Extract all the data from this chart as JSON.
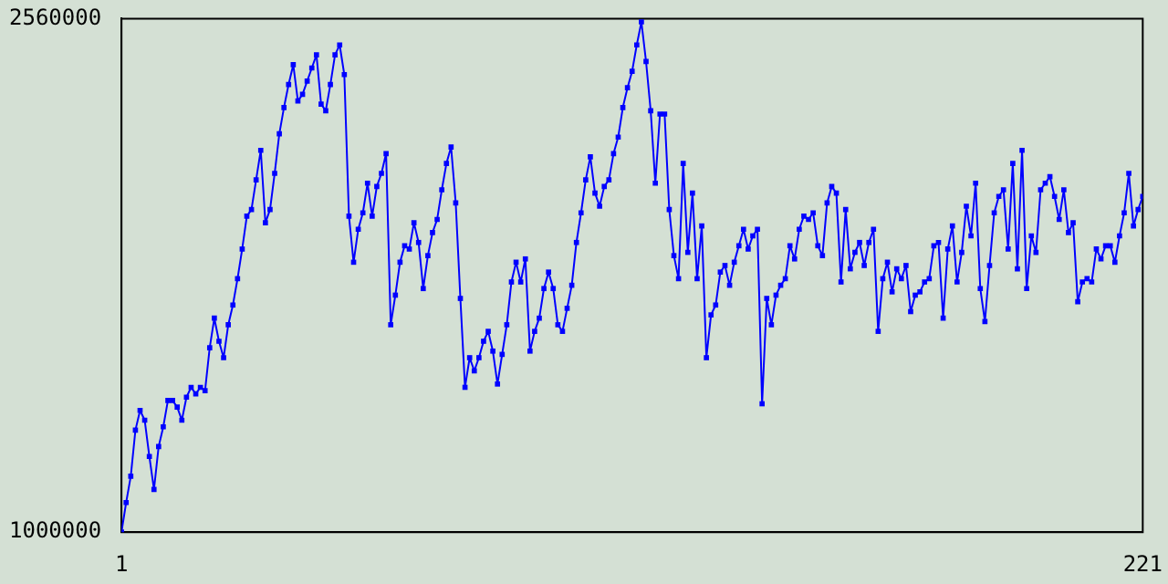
{
  "chart_data": {
    "type": "line",
    "xlim": [
      1,
      221
    ],
    "xticks": [
      1,
      221
    ],
    "ylim": [
      1000000,
      2560000
    ],
    "yticks": [
      1000000,
      2560000
    ],
    "grid": false,
    "legend": false,
    "marker": "square",
    "line_style": "solid",
    "series": [
      {
        "color": "#0000ff",
        "x": [
          1,
          2,
          3,
          4,
          5,
          6,
          7,
          8,
          9,
          10,
          11,
          12,
          13,
          14,
          15,
          16,
          17,
          18,
          19,
          20,
          21,
          22,
          23,
          24,
          25,
          26,
          27,
          28,
          29,
          30,
          31,
          32,
          33,
          34,
          35,
          36,
          37,
          38,
          39,
          40,
          41,
          42,
          43,
          44,
          45,
          46,
          47,
          48,
          49,
          50,
          51,
          52,
          53,
          54,
          55,
          56,
          57,
          58,
          59,
          60,
          61,
          62,
          63,
          64,
          65,
          66,
          67,
          68,
          69,
          70,
          71,
          72,
          73,
          74,
          75,
          76,
          77,
          78,
          79,
          80,
          81,
          82,
          83,
          84,
          85,
          86,
          87,
          88,
          89,
          90,
          91,
          92,
          93,
          94,
          95,
          96,
          97,
          98,
          99,
          100,
          101,
          102,
          103,
          104,
          105,
          106,
          107,
          108,
          109,
          110,
          111,
          112,
          113,
          114,
          115,
          116,
          117,
          118,
          119,
          120,
          121,
          122,
          123,
          124,
          125,
          126,
          127,
          128,
          129,
          130,
          131,
          132,
          133,
          134,
          135,
          136,
          137,
          138,
          139,
          140,
          141,
          142,
          143,
          144,
          145,
          146,
          147,
          148,
          149,
          150,
          151,
          152,
          153,
          154,
          155,
          156,
          157,
          158,
          159,
          160,
          161,
          162,
          163,
          164,
          165,
          166,
          167,
          168,
          169,
          170,
          171,
          172,
          173,
          174,
          175,
          176,
          177,
          178,
          179,
          180,
          181,
          182,
          183,
          184,
          185,
          186,
          187,
          188,
          189,
          190,
          191,
          192,
          193,
          194,
          195,
          196,
          197,
          198,
          199,
          200,
          201,
          202,
          203,
          204,
          205,
          206,
          207,
          208,
          209,
          210,
          211,
          212,
          213,
          214,
          215,
          216,
          217,
          218,
          219,
          220,
          221
        ],
        "values": [
          1000000,
          1090000,
          1170000,
          1310000,
          1370000,
          1340000,
          1230000,
          1130000,
          1260000,
          1320000,
          1400000,
          1400000,
          1380000,
          1340000,
          1410000,
          1440000,
          1420000,
          1440000,
          1430000,
          1560000,
          1650000,
          1580000,
          1530000,
          1630000,
          1690000,
          1770000,
          1860000,
          1960000,
          1980000,
          2070000,
          2160000,
          1940000,
          1980000,
          2090000,
          2210000,
          2290000,
          2360000,
          2420000,
          2310000,
          2330000,
          2370000,
          2410000,
          2450000,
          2300000,
          2280000,
          2360000,
          2450000,
          2480000,
          2390000,
          1960000,
          1820000,
          1920000,
          1970000,
          2060000,
          1960000,
          2050000,
          2090000,
          2150000,
          1630000,
          1720000,
          1820000,
          1870000,
          1860000,
          1940000,
          1880000,
          1740000,
          1840000,
          1910000,
          1950000,
          2040000,
          2120000,
          2170000,
          2000000,
          1710000,
          1440000,
          1530000,
          1490000,
          1530000,
          1580000,
          1610000,
          1550000,
          1450000,
          1540000,
          1630000,
          1760000,
          1820000,
          1760000,
          1830000,
          1550000,
          1610000,
          1650000,
          1740000,
          1790000,
          1740000,
          1630000,
          1610000,
          1680000,
          1750000,
          1880000,
          1970000,
          2070000,
          2140000,
          2030000,
          1990000,
          2050000,
          2070000,
          2150000,
          2200000,
          2290000,
          2350000,
          2400000,
          2480000,
          2550000,
          2430000,
          2280000,
          2060000,
          2270000,
          2270000,
          1980000,
          1840000,
          1770000,
          2120000,
          1850000,
          2030000,
          1770000,
          1930000,
          1530000,
          1660000,
          1690000,
          1790000,
          1810000,
          1750000,
          1820000,
          1870000,
          1920000,
          1860000,
          1900000,
          1920000,
          1390000,
          1710000,
          1630000,
          1720000,
          1750000,
          1770000,
          1870000,
          1830000,
          1920000,
          1960000,
          1950000,
          1970000,
          1870000,
          1840000,
          2000000,
          2050000,
          2030000,
          1760000,
          1980000,
          1800000,
          1850000,
          1880000,
          1810000,
          1880000,
          1920000,
          1610000,
          1770000,
          1820000,
          1730000,
          1800000,
          1770000,
          1810000,
          1670000,
          1720000,
          1730000,
          1760000,
          1770000,
          1870000,
          1880000,
          1650000,
          1860000,
          1930000,
          1760000,
          1850000,
          1990000,
          1900000,
          2060000,
          1740000,
          1640000,
          1810000,
          1970000,
          2020000,
          2040000,
          1860000,
          2120000,
          1800000,
          2160000,
          1740000,
          1900000,
          1850000,
          2040000,
          2060000,
          2080000,
          2020000,
          1950000,
          2040000,
          1910000,
          1940000,
          1700000,
          1760000,
          1770000,
          1760000,
          1860000,
          1830000,
          1870000,
          1870000,
          1820000,
          1900000,
          1970000,
          2090000,
          1930000,
          1980000,
          2020000
        ]
      }
    ]
  }
}
